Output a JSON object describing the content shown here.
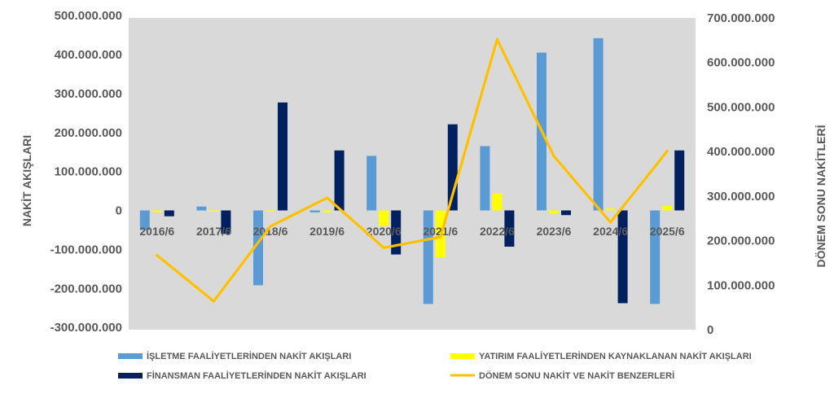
{
  "chart_data": {
    "type": "bar",
    "categories": [
      "2016/6",
      "2017/6",
      "2018/6",
      "2019/6",
      "2020/6",
      "2021/6",
      "2022/6",
      "2023/6",
      "2024/6",
      "2025/6"
    ],
    "series": [
      {
        "name": "İŞLETME FAALİYETLERİNDEN NAKİT AKIŞLARI",
        "type": "bar",
        "axis": "left",
        "color": "#5B9BD5",
        "values": [
          -50000000,
          10000000,
          -192000000,
          -5000000,
          140000000,
          -240000000,
          165000000,
          405000000,
          442000000,
          -240000000
        ]
      },
      {
        "name": "YATIRIM FAALİYETLERİNDEN KAYNAKLANAN NAKİT AKIŞLARI",
        "type": "bar",
        "axis": "left",
        "color": "#FFFF00",
        "values": [
          -5000000,
          -3000000,
          -3000000,
          -5000000,
          -40000000,
          -120000000,
          45000000,
          -8000000,
          5000000,
          12000000
        ]
      },
      {
        "name": "FİNANSMAN FAALİYETLERİNDEN NAKİT AKIŞLARI",
        "type": "bar",
        "axis": "left",
        "color": "#002060",
        "values": [
          -15000000,
          -60000000,
          277000000,
          154000000,
          -113000000,
          221000000,
          -93000000,
          -12000000,
          -238000000,
          154000000
        ]
      },
      {
        "name": "DÖNEM SONU NAKİT VE NAKİT BENZERLERİ",
        "type": "line",
        "axis": "right",
        "color": "#FFC000",
        "values": [
          167000000,
          64000000,
          232000000,
          296000000,
          184000000,
          208000000,
          652000000,
          390000000,
          241000000,
          401000000
        ]
      }
    ],
    "ylabel": "NAKİT AKIŞLARI",
    "y2label": "DÖNEM SONU NAKİTLERİ",
    "ylim": [
      -300000000,
      500000000
    ],
    "y2lim": [
      0,
      700000000
    ],
    "yticks": [
      "500.000.000",
      "400.000.000",
      "300.000.000",
      "200.000.000",
      "100.000.000",
      "0",
      "-100.000.000",
      "-200.000.000",
      "-300.000.000"
    ],
    "y2ticks": [
      "700.000.000",
      "600.000.000",
      "500.000.000",
      "400.000.000",
      "300.000.000",
      "200.000.000",
      "100.000.000",
      "0"
    ],
    "grid": false,
    "legend_position": "bottom",
    "plot_background": "#D9D9D9"
  }
}
